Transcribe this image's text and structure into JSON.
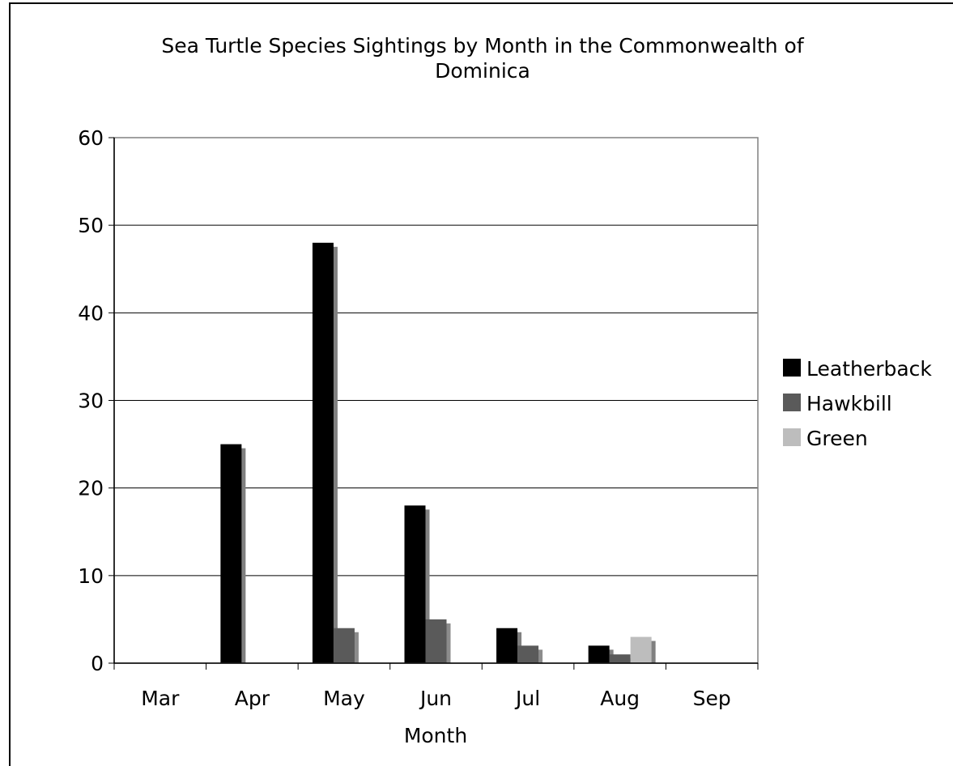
{
  "chart_data": {
    "type": "bar",
    "title_lines": [
      "Sea Turtle Species Sightings by Month in the Commonwealth of",
      "Dominica"
    ],
    "xlabel": "Month",
    "ylabel": "",
    "ylim": [
      0,
      60
    ],
    "yticks": [
      "0",
      "10",
      "20",
      "30",
      "40",
      "50",
      "60"
    ],
    "categories": [
      "Mar",
      "Apr",
      "May",
      "Jun",
      "Jul",
      "Aug",
      "Sep"
    ],
    "series": [
      {
        "name": "Leatherback",
        "color": "#000000",
        "shadow": "#808080",
        "values": [
          0,
          25,
          48,
          18,
          4,
          2,
          0
        ]
      },
      {
        "name": "Hawkbill",
        "color": "#5a5a5a",
        "shadow": "#8c8c8c",
        "values": [
          0,
          0,
          4,
          5,
          2,
          1,
          0
        ]
      },
      {
        "name": "Green",
        "color": "#bdbdbd",
        "shadow": "#808080",
        "values": [
          0,
          0,
          0,
          0,
          0,
          3,
          0
        ]
      }
    ],
    "grid": true,
    "legend_position": "right"
  }
}
